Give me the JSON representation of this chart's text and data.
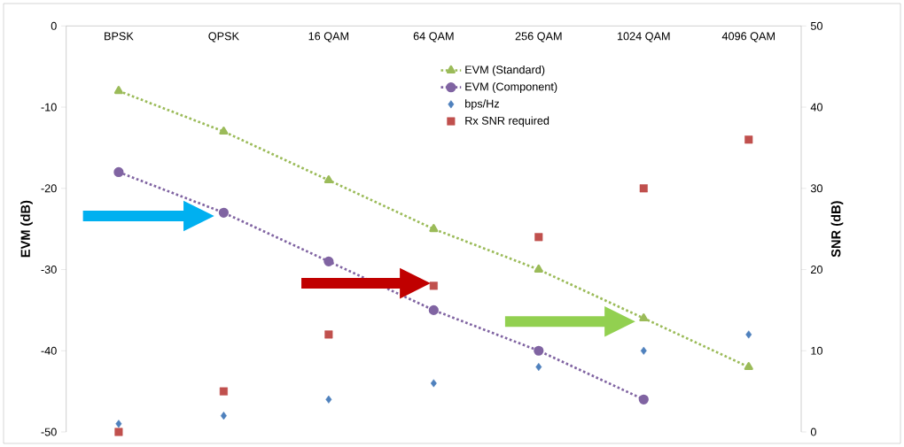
{
  "chart_data": {
    "type": "line",
    "categories": [
      "BPSK",
      "QPSK",
      "16 QAM",
      "64 QAM",
      "256 QAM",
      "1024 QAM",
      "4096 QAM"
    ],
    "ylabel": "EVM (dB)",
    "y2label": "SNR (dB)",
    "ylim": [
      -50,
      0
    ],
    "yticks": [
      -50,
      -40,
      -30,
      -20,
      -10,
      0
    ],
    "y2lim": [
      0,
      50
    ],
    "y2ticks": [
      0,
      10,
      20,
      30,
      40,
      50
    ],
    "legend": "top",
    "series": [
      {
        "name": "EVM (Standard)",
        "color": "#9bbb59",
        "marker": "triangle",
        "line_style": "dotted",
        "values": [
          -8,
          -13,
          -19,
          -25,
          -30,
          -36,
          -42
        ]
      },
      {
        "name": "EVM (Component)",
        "color": "#8064a2",
        "marker": "circle",
        "line_style": "dotted",
        "values": [
          -18,
          -23,
          -29,
          -35,
          -40,
          -46,
          null
        ]
      },
      {
        "name": "bps/Hz",
        "type": "scatter",
        "color": "#4f81bd",
        "marker": "diamond",
        "axis": "y2",
        "values": [
          1,
          2,
          4,
          6,
          8,
          10,
          12
        ]
      },
      {
        "name": "Rx SNR required",
        "type": "scatter",
        "color": "#c0504d",
        "marker": "square",
        "axis": "y2",
        "values": [
          0,
          5,
          12,
          18,
          24,
          30,
          36
        ]
      }
    ]
  }
}
